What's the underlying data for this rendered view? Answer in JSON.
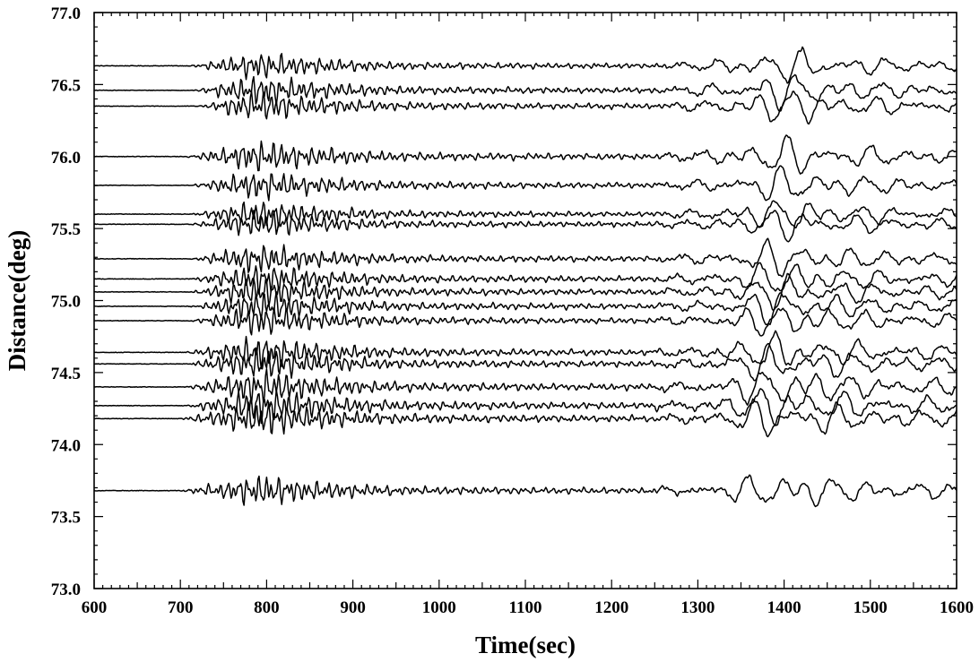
{
  "chart_data": {
    "type": "line",
    "title": "",
    "xlabel": "Time(sec)",
    "ylabel": "Distance(deg)",
    "xlim": [
      600,
      1600
    ],
    "ylim": [
      73.0,
      77.0
    ],
    "x_ticks": [
      "600",
      "700",
      "800",
      "900",
      "1000",
      "1100",
      "1200",
      "1300",
      "1400",
      "1500",
      "1600"
    ],
    "y_ticks": [
      "73.0",
      "73.5",
      "74.0",
      "74.5",
      "75.0",
      "75.5",
      "76.0",
      "76.5",
      "77.0"
    ],
    "grid": false,
    "legend": "none",
    "trace_color": "#000000",
    "series": [
      {
        "distance": 76.63,
        "onset": 710,
        "amp": 1.0
      },
      {
        "distance": 76.46,
        "onset": 715,
        "amp": 1.1
      },
      {
        "distance": 76.35,
        "onset": 720,
        "amp": 1.1
      },
      {
        "distance": 76.0,
        "onset": 705,
        "amp": 1.2
      },
      {
        "distance": 75.8,
        "onset": 710,
        "amp": 1.1
      },
      {
        "distance": 75.6,
        "onset": 710,
        "amp": 1.0
      },
      {
        "distance": 75.53,
        "onset": 710,
        "amp": 1.0
      },
      {
        "distance": 75.29,
        "onset": 710,
        "amp": 1.1
      },
      {
        "distance": 75.15,
        "onset": 710,
        "amp": 1.1
      },
      {
        "distance": 75.06,
        "onset": 710,
        "amp": 1.1
      },
      {
        "distance": 74.96,
        "onset": 710,
        "amp": 1.1
      },
      {
        "distance": 74.86,
        "onset": 710,
        "amp": 1.1
      },
      {
        "distance": 74.64,
        "onset": 705,
        "amp": 1.2
      },
      {
        "distance": 74.56,
        "onset": 705,
        "amp": 1.2
      },
      {
        "distance": 74.4,
        "onset": 705,
        "amp": 1.3
      },
      {
        "distance": 74.27,
        "onset": 705,
        "amp": 1.3
      },
      {
        "distance": 74.18,
        "onset": 700,
        "amp": 1.3
      },
      {
        "distance": 73.68,
        "onset": 700,
        "amp": 1.2
      }
    ]
  }
}
